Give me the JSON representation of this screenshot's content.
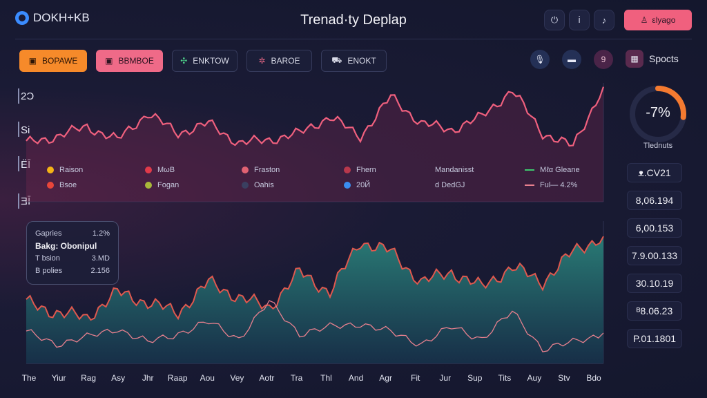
{
  "header": {
    "logo_text": "DOKH+KB",
    "title": "Trenad·ty Deplap",
    "icons": [
      "clock-icon",
      "info-icon",
      "bell-icon"
    ],
    "icon_glyphs": [
      "⏻",
      "ⅰ",
      "♪"
    ],
    "primary_button": "εlyago"
  },
  "toolbar": {
    "buttons": [
      {
        "label": "BOPAWE",
        "icon": "tag-icon",
        "glyph": "▣"
      },
      {
        "label": "BBMBOE",
        "icon": "box-icon",
        "glyph": "▣"
      },
      {
        "label": "ENKTOW",
        "icon": "network-icon",
        "glyph": "✣"
      },
      {
        "label": "BAROE",
        "icon": "bug-icon",
        "glyph": "✲"
      },
      {
        "label": "ENOKT",
        "icon": "car-icon",
        "glyph": "⛟"
      }
    ],
    "circle_icons": [
      "mic-icon",
      "video-icon",
      "number-icon"
    ],
    "circle_glyphs": [
      "🎙",
      "▬",
      "9"
    ],
    "sports_label": "Spocts"
  },
  "colors": {
    "upper_line": "#f0607e",
    "lower_line": "#e0584e",
    "lower_fill": "#1f6a68",
    "thin_line": "#e8808e",
    "gauge": "#f47a30"
  },
  "y_labels": [
    "2Ɔ",
    "Si",
    "ЁĪ",
    "ƎĪ"
  ],
  "legend": [
    {
      "label": "Raison",
      "color": "#f5b316",
      "type": "dot"
    },
    {
      "label": "ΜωΒ",
      "color": "#e03a4a",
      "type": "dot"
    },
    {
      "label": "Fraston",
      "color": "#e06272",
      "type": "dot"
    },
    {
      "label": "Fhern",
      "color": "#b8384c",
      "type": "dot"
    },
    {
      "label": "Mandanisst",
      "color": "",
      "type": "none"
    },
    {
      "label": "Mℓα  Gleane",
      "color": "#3ec96e",
      "type": "dash"
    },
    {
      "label": "Bsoe",
      "color": "#e8463a",
      "type": "dot"
    },
    {
      "label": "Fogan",
      "color": "#a8b83a",
      "type": "dot"
    },
    {
      "label": "Oahis",
      "color": "#3a3f60",
      "type": "dot"
    },
    {
      "label": "20Й",
      "color": "#3a8ef0",
      "type": "dot"
    },
    {
      "label": "d DedGJ",
      "color": "",
      "type": "none"
    },
    {
      "label": "Ful— 4.2%",
      "color": "#e8808e",
      "type": "dash"
    }
  ],
  "tooltip": {
    "rows": [
      {
        "label": "Gapries",
        "value": "1.2%"
      },
      {
        "label": "Bakg: Obonipul",
        "value": ""
      },
      {
        "label": "T bsion",
        "value": "3.MD"
      },
      {
        "label": "B polies",
        "value": "2.156"
      }
    ]
  },
  "chart_data": {
    "type": "area",
    "title": "Trenad·ty Deplap",
    "x": [
      "The",
      "Yiur",
      "Rag",
      "Asy",
      "Jhr",
      "Raap",
      "Aou",
      "Vey",
      "Aotr",
      "Tra",
      "Thl",
      "And",
      "Agr",
      "Fit",
      "Jur",
      "Sup",
      "Tits",
      "Auy",
      "Stv",
      "Bdo"
    ],
    "series": [
      {
        "name": "upper",
        "values": [
          1.4,
          1.6,
          1.9,
          1.5,
          2.3,
          1.7,
          2.0,
          1.4,
          1.5,
          1.7,
          2.2,
          1.6,
          2.8,
          2.0,
          1.8,
          2.2,
          3.0,
          1.7,
          1.3,
          3.1
        ]
      },
      {
        "name": "lower-area",
        "values": [
          0.6,
          0.5,
          0.45,
          0.7,
          0.6,
          0.5,
          0.8,
          0.65,
          0.55,
          0.9,
          0.7,
          1.2,
          1.1,
          0.8,
          0.9,
          0.75,
          0.95,
          0.8,
          1.1,
          1.25
        ]
      },
      {
        "name": "lower-line",
        "values": [
          0.3,
          0.2,
          0.25,
          0.35,
          0.2,
          0.3,
          0.4,
          0.25,
          0.6,
          0.3,
          0.35,
          0.4,
          0.3,
          0.2,
          0.35,
          0.25,
          0.5,
          0.15,
          0.2,
          0.3
        ]
      }
    ]
  },
  "gauge": {
    "value": "-7%",
    "label": "Tlednuts",
    "fraction": 0.27
  },
  "values": [
    "ᴥ.CV21",
    "8,06.194",
    "6,00.153",
    "7.9.00.133",
    "30.10.19",
    "ᴮ8.06.23",
    "P.01.1801"
  ]
}
